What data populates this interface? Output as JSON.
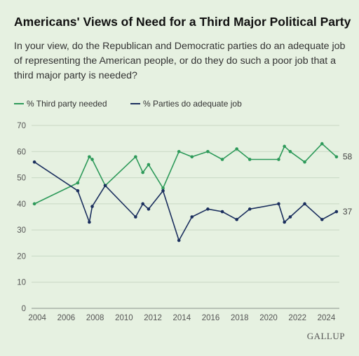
{
  "header": {
    "title": "Americans' Views of Need for a Third Major Political Party",
    "subtitle": "In your view, do the Republican and Democratic parties do an adequate job of representing the American people, or do they do such a poor job that a third major party is needed?"
  },
  "brand": "GALLUP",
  "colors": {
    "green": "#2e9a5a",
    "navy": "#1b2f5e",
    "background": "#e6f1e1",
    "grid": "#c9d8c4"
  },
  "chart_data": {
    "type": "line",
    "title": "Americans' Views of Need for a Third Major Political Party",
    "xlabel": "",
    "ylabel": "",
    "xlim": [
      2003.7,
      2024.9
    ],
    "ylim": [
      0,
      70
    ],
    "x_ticks": [
      "2004",
      "2006",
      "2008",
      "2010",
      "2012",
      "2014",
      "2016",
      "2018",
      "2020",
      "2022",
      "2024"
    ],
    "y_ticks": [
      "0",
      "10",
      "20",
      "30",
      "40",
      "50",
      "60",
      "70"
    ],
    "grid": "horizontal",
    "legend": "top-left",
    "series": [
      {
        "name": "% Third party needed",
        "color": "#2e9a5a",
        "end_label": "58",
        "points": [
          [
            2003.8,
            40
          ],
          [
            2006.8,
            48
          ],
          [
            2007.6,
            58
          ],
          [
            2007.8,
            57
          ],
          [
            2008.7,
            47
          ],
          [
            2010.8,
            58
          ],
          [
            2011.3,
            52
          ],
          [
            2011.7,
            55
          ],
          [
            2012.7,
            46
          ],
          [
            2013.8,
            60
          ],
          [
            2014.7,
            58
          ],
          [
            2015.8,
            60
          ],
          [
            2016.8,
            57
          ],
          [
            2017.8,
            61
          ],
          [
            2018.7,
            57
          ],
          [
            2020.7,
            57
          ],
          [
            2021.1,
            62
          ],
          [
            2021.5,
            60
          ],
          [
            2022.5,
            56
          ],
          [
            2023.7,
            63
          ],
          [
            2024.7,
            58
          ]
        ]
      },
      {
        "name": "% Parties do adequate job",
        "color": "#1b2f5e",
        "end_label": "37",
        "points": [
          [
            2003.8,
            56
          ],
          [
            2006.8,
            45
          ],
          [
            2007.6,
            33
          ],
          [
            2007.8,
            39
          ],
          [
            2008.7,
            47
          ],
          [
            2010.8,
            35
          ],
          [
            2011.3,
            40
          ],
          [
            2011.7,
            38
          ],
          [
            2012.7,
            45
          ],
          [
            2013.8,
            26
          ],
          [
            2014.7,
            35
          ],
          [
            2015.8,
            38
          ],
          [
            2016.8,
            37
          ],
          [
            2017.8,
            34
          ],
          [
            2018.7,
            38
          ],
          [
            2020.7,
            40
          ],
          [
            2021.1,
            33
          ],
          [
            2021.5,
            35
          ],
          [
            2022.5,
            40
          ],
          [
            2023.7,
            34
          ],
          [
            2024.7,
            37
          ]
        ]
      }
    ]
  }
}
